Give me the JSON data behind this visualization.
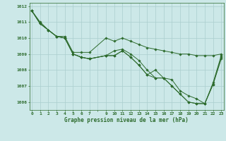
{
  "title": "Graphe pression niveau de la mer (hPa)",
  "background_color": "#cce8e8",
  "grid_color": "#aacece",
  "line_color": "#2d6b2d",
  "ylim": [
    1005.5,
    1012.2
  ],
  "yticks": [
    1006,
    1007,
    1008,
    1009,
    1010,
    1011,
    1012
  ],
  "xticks": [
    0,
    1,
    2,
    3,
    4,
    5,
    6,
    7,
    9,
    10,
    11,
    12,
    13,
    14,
    15,
    16,
    17,
    18,
    19,
    20,
    21,
    22,
    23
  ],
  "series": [
    [
      1011.7,
      1010.9,
      1010.5,
      1010.1,
      1010.0,
      1009.0,
      1008.8,
      1008.7,
      null,
      1008.9,
      1008.9,
      1009.2,
      1008.8,
      1008.3,
      1007.7,
      1008.0,
      1007.5,
      1007.4,
      1006.7,
      1006.4,
      1006.2,
      1005.9,
      1007.1,
      1008.8
    ],
    [
      1011.7,
      1010.9,
      1010.5,
      1010.1,
      1010.0,
      1009.0,
      1008.8,
      1008.7,
      null,
      1008.9,
      1008.9,
      1009.2,
      1008.8,
      1008.3,
      1007.7,
      1007.5,
      1007.5,
      1007.0,
      1006.5,
      1006.0,
      1005.9,
      1005.9,
      1007.1,
      1008.7
    ],
    [
      1011.7,
      1011.0,
      1010.5,
      1010.1,
      1010.0,
      1009.0,
      1008.8,
      1008.7,
      null,
      1008.9,
      1009.2,
      1009.3,
      1009.0,
      1008.6,
      1008.0,
      1007.5,
      1007.5,
      1007.0,
      1006.5,
      1006.0,
      1005.9,
      1005.9,
      1007.2,
      1008.9
    ],
    [
      1011.7,
      1010.9,
      1010.5,
      1010.1,
      1010.1,
      1009.1,
      1009.1,
      1009.1,
      null,
      1010.0,
      1009.8,
      1010.0,
      1009.8,
      1009.6,
      1009.4,
      1009.3,
      1009.2,
      1009.1,
      1009.0,
      1009.0,
      1008.9,
      1008.9,
      1008.9,
      1009.0
    ]
  ]
}
